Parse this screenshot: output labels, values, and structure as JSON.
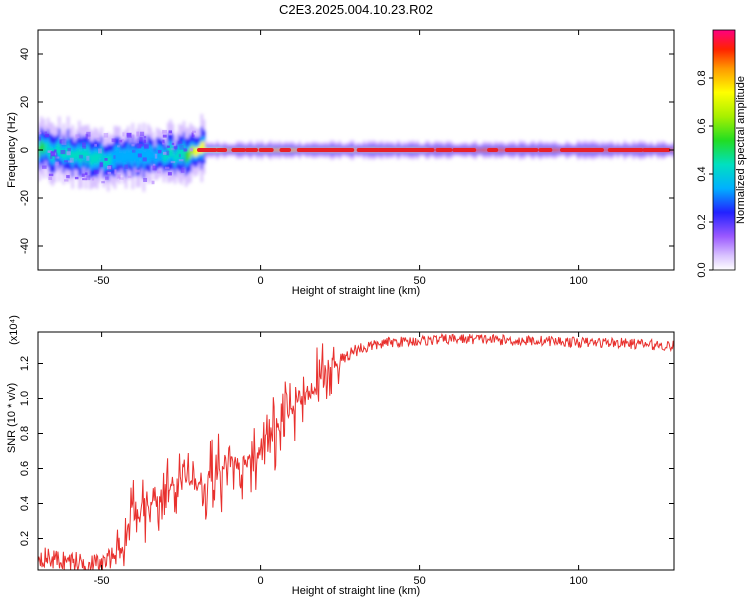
{
  "title": "C2E3.2025.004.10.23.R02",
  "colors": {
    "snr_line": "#e8302d",
    "spectrogram_ridge": "#e8202a",
    "axis": "#000000"
  },
  "chart_data": [
    {
      "type": "heatmap",
      "xlabel": "Height of straight line (km)",
      "ylabel": "Frequency (Hz)",
      "xlim": [
        -70,
        130
      ],
      "ylim": [
        -50,
        50
      ],
      "x_ticks": [
        -50,
        0,
        50,
        100
      ],
      "y_ticks": [
        -40,
        -20,
        0,
        20,
        40
      ],
      "colorbar": {
        "label": "Normalized spectral amplitude",
        "range": [
          0,
          1
        ],
        "ticks": [
          0.0,
          0.2,
          0.4,
          0.6,
          0.8
        ],
        "colormap": "rainbow (magenta-blue-cyan-green-yellow-red)"
      },
      "ridge": {
        "description_points": [
          {
            "x": -70,
            "freq": 0,
            "amp": 0.55
          },
          {
            "x": -50,
            "freq": -3,
            "amp": 0.45
          },
          {
            "x": -35,
            "freq": -3,
            "amp": 0.4
          },
          {
            "x": -25,
            "freq": -2,
            "amp": 0.5
          },
          {
            "x": -20,
            "freq": 0,
            "amp": 0.8
          },
          {
            "x": 0,
            "freq": 0,
            "amp": 0.9
          },
          {
            "x": 130,
            "freq": 0,
            "amp": 0.95
          }
        ]
      }
    },
    {
      "type": "line",
      "xlabel": "Height of straight line (km)",
      "ylabel": "SNR (10 * v/v)",
      "y_multiplier": "(x10⁴)",
      "xlim": [
        -70,
        130
      ],
      "ylim": [
        0.02,
        1.38
      ],
      "x_ticks": [
        -50,
        0,
        50,
        100
      ],
      "y_ticks": [
        0.2,
        0.4,
        0.6,
        0.8,
        1.0,
        1.2
      ],
      "y_tick_labels": [
        "0.2",
        "0.4",
        "0.6",
        "0.8",
        "1.0",
        "1.2"
      ],
      "series": [
        {
          "x": [
            -70,
            -65,
            -60,
            -55,
            -50,
            -45,
            -40,
            -35,
            -30,
            -25,
            -20,
            -15,
            -10,
            -5,
            0,
            5,
            10,
            15,
            20,
            25,
            30,
            40,
            50,
            60,
            70,
            80,
            90,
            100,
            110,
            120,
            130
          ],
          "values": [
            0.1,
            0.08,
            0.07,
            0.06,
            0.05,
            0.12,
            0.3,
            0.4,
            0.45,
            0.55,
            0.5,
            0.55,
            0.6,
            0.65,
            0.7,
            0.8,
            0.95,
            1.05,
            1.15,
            1.22,
            1.28,
            1.32,
            1.33,
            1.34,
            1.34,
            1.33,
            1.33,
            1.32,
            1.32,
            1.31,
            1.3
          ]
        }
      ]
    }
  ]
}
